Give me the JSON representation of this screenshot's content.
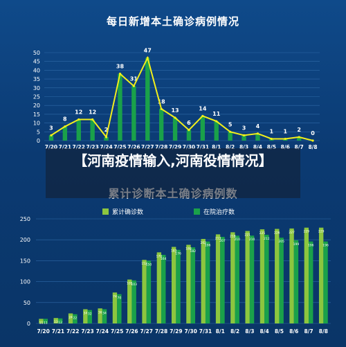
{
  "overlay_text": "【河南疫情输入,河南役情情况】",
  "colors": {
    "bar_dark_green": "#1aa14a",
    "bar_light_green": "#8cc63f",
    "line_yellow": "#f2ef1b",
    "axis_text": "#ffffff",
    "gridline": "#2f6aa8"
  },
  "chart_data": [
    {
      "type": "bar",
      "title": "每日新增本土确诊病例情况",
      "categories": [
        "7/20",
        "7/21",
        "7/22",
        "7/23",
        "7/24",
        "7/25",
        "7/26",
        "7/27",
        "7/28",
        "7/29",
        "7/30",
        "7/31",
        "8/1",
        "8/2",
        "8/3",
        "8/4",
        "8/5",
        "8/6",
        "8/7",
        "8/8"
      ],
      "series": [
        {
          "values": [
            3,
            8,
            12,
            12,
            2,
            38,
            31,
            47,
            18,
            13,
            6,
            14,
            11,
            5,
            3,
            4,
            1,
            1,
            2,
            0
          ]
        }
      ],
      "overlay_line": true,
      "ylim": [
        0,
        50
      ],
      "yticks": [
        0,
        5,
        10,
        15,
        20,
        25,
        30,
        35,
        40,
        45,
        50
      ],
      "grid": true
    },
    {
      "type": "bar",
      "title": "累计诊断本土确诊病例数",
      "categories": [
        "7/20",
        "7/21",
        "7/22",
        "7/23",
        "7/24",
        "7/25",
        "7/26",
        "7/27",
        "7/28",
        "7/29",
        "7/30",
        "7/31",
        "8/1",
        "8/2",
        "8/3",
        "8/4",
        "8/5",
        "8/6",
        "8/7",
        "8/8"
      ],
      "series": [
        {
          "name": "累计确诊数",
          "values": [
            11,
            13,
            24,
            34,
            36,
            74,
            105,
            152,
            170,
            183,
            188,
            202,
            213,
            218,
            221,
            225,
            226,
            227,
            229,
            229
          ]
        },
        {
          "name": "在院治疗数",
          "values": [
            11,
            12,
            22,
            32,
            34,
            70,
            103,
            150,
            164,
            176,
            182,
            196,
            207,
            210,
            210,
            212,
            205,
            199,
            196,
            196
          ]
        }
      ],
      "ylim": [
        0,
        250
      ],
      "yticks": [
        0,
        50,
        100,
        150,
        200,
        250
      ],
      "grid": true,
      "legend_position": "top"
    }
  ]
}
